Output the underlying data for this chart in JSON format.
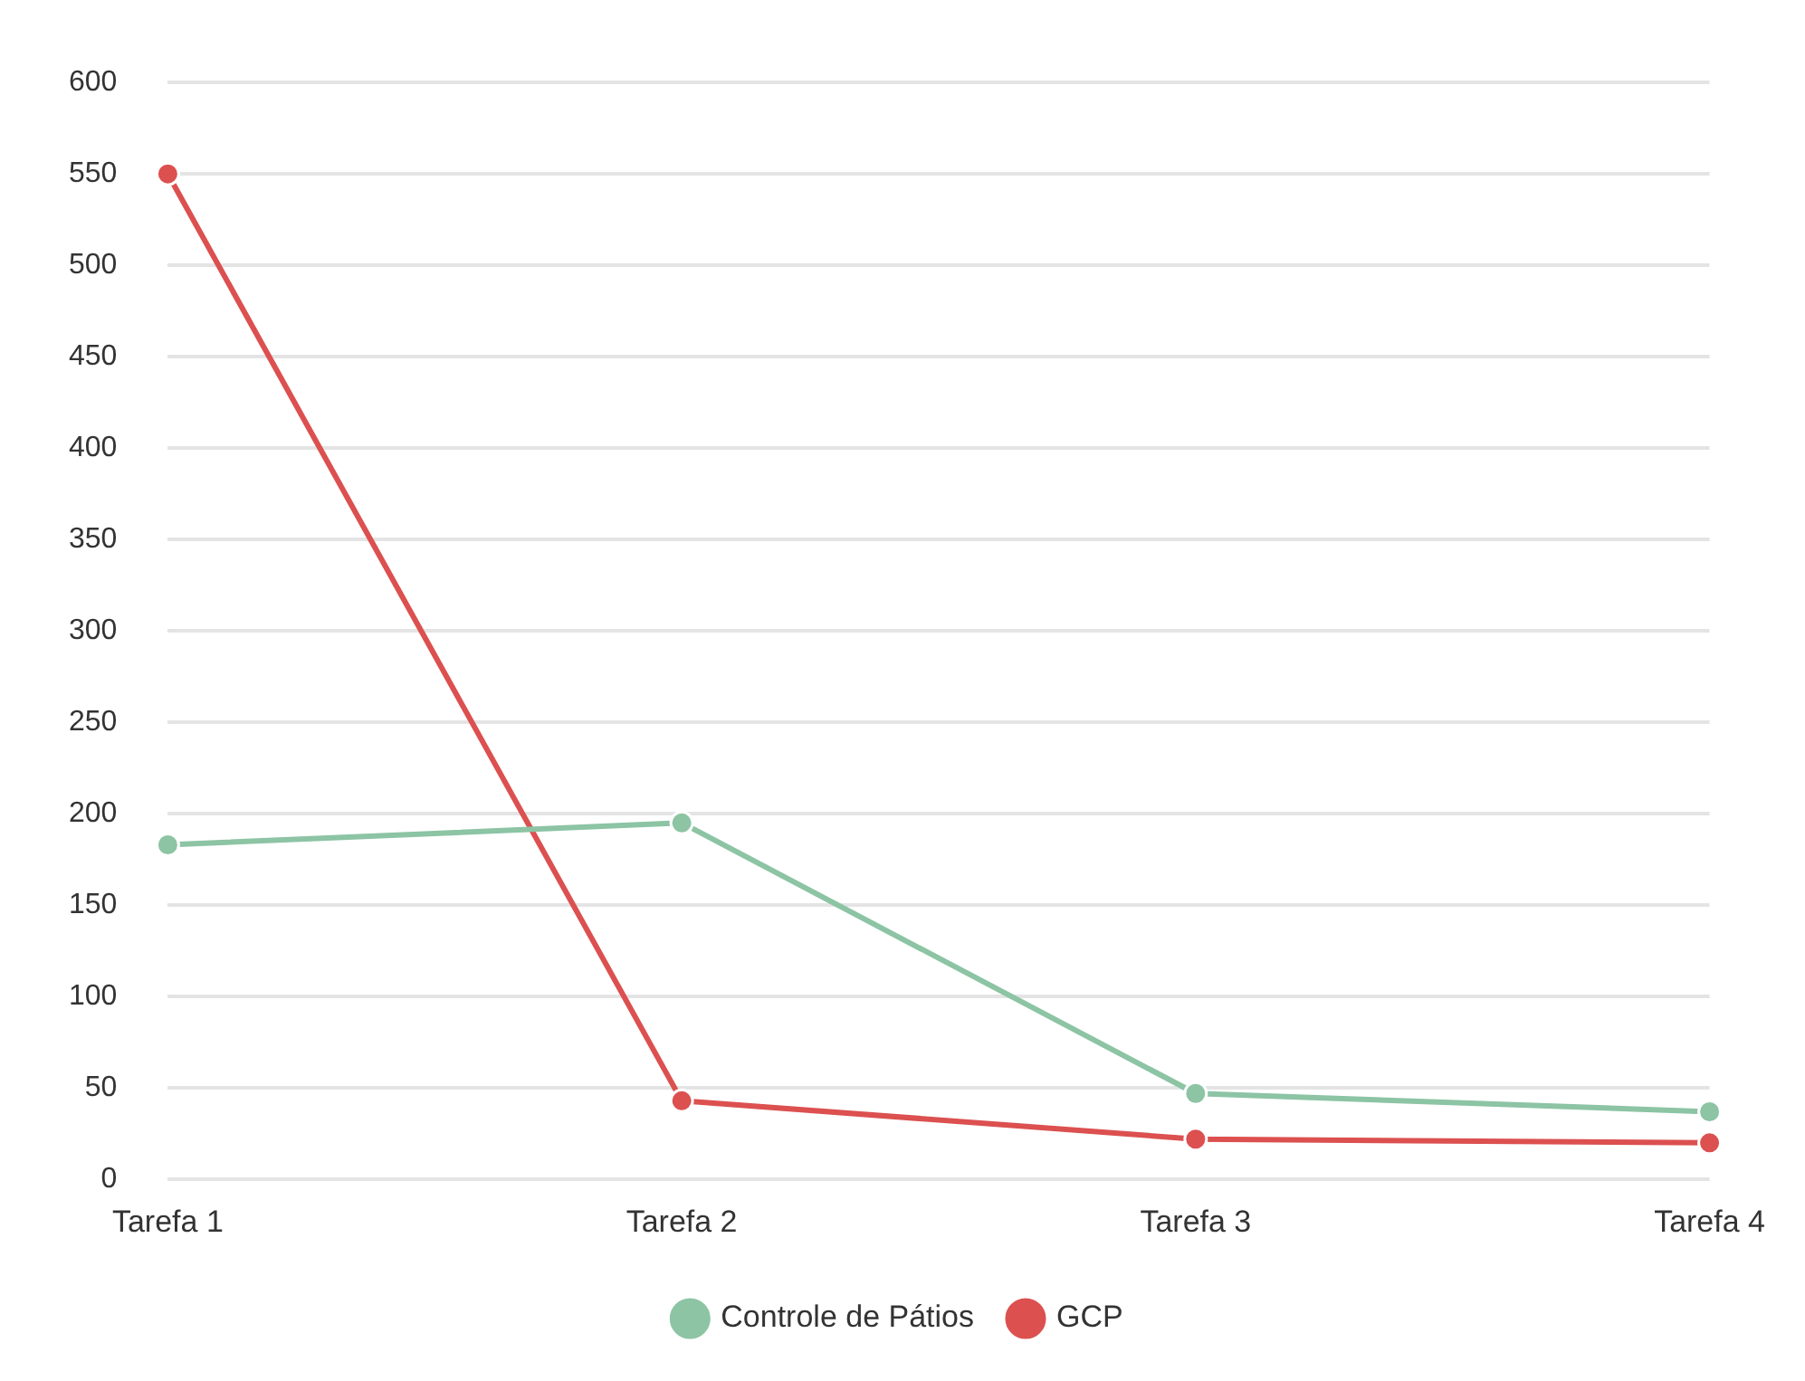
{
  "chart_data": {
    "type": "line",
    "categories": [
      "Tarefa 1",
      "Tarefa 2",
      "Tarefa 3",
      "Tarefa 4"
    ],
    "series": [
      {
        "name": "Controle de Pátios",
        "color": "#8cc4a4",
        "values": [
          183,
          195,
          47,
          37
        ]
      },
      {
        "name": "GCP",
        "color": "#dc5050",
        "values": [
          550,
          43,
          22,
          20
        ]
      }
    ],
    "ylim": [
      0,
      600
    ],
    "yticks": [
      0,
      50,
      100,
      150,
      200,
      250,
      300,
      350,
      400,
      450,
      500,
      550,
      600
    ],
    "grid": "y",
    "legend": "bottom",
    "marker": "circle",
    "line_style": "solid"
  }
}
